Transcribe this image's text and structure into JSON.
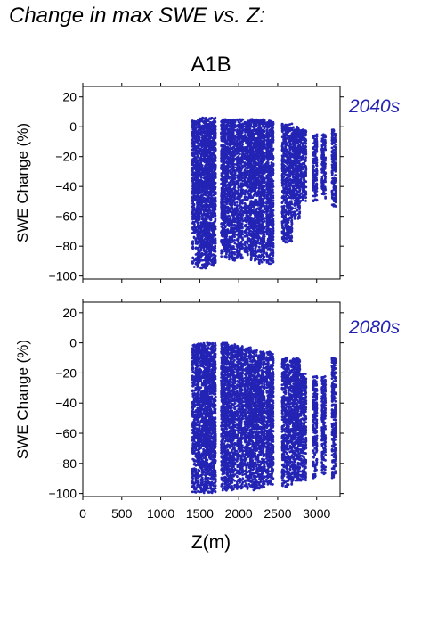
{
  "title": "Change in max SWE vs. Z:",
  "colors": {
    "points": "#2323b4",
    "period_label": "#2323b4",
    "axes": "#000000"
  },
  "chart_data": [
    {
      "type": "scatter",
      "scenario": "A1B",
      "period": "2040s",
      "ylabel": "SWE Change (%)",
      "xlabel": "",
      "xlim": [
        0,
        3300
      ],
      "ylim": [
        -102,
        27
      ],
      "yticks": [
        20,
        0,
        -20,
        -40,
        -60,
        -80,
        -100
      ],
      "xticks": [
        0,
        500,
        1000,
        1500,
        2000,
        2500,
        3000
      ],
      "show_x_tick_labels": false,
      "grid": false,
      "x_range_of_points": [
        1410,
        3240
      ],
      "y_range_of_points": [
        -96,
        6
      ],
      "elevation_bands": [
        {
          "x": [
            1410,
            1470
          ],
          "ymin": -94,
          "ymax": 4
        },
        {
          "x": [
            1480,
            1570
          ],
          "ymin": -96,
          "ymax": 6
        },
        {
          "x": [
            1580,
            1700
          ],
          "ymin": -93,
          "ymax": 6
        },
        {
          "x": [
            1780,
            1860
          ],
          "ymin": -88,
          "ymax": 5
        },
        {
          "x": [
            1880,
            1950
          ],
          "ymin": -90,
          "ymax": 5
        },
        {
          "x": [
            1980,
            2050
          ],
          "ymin": -89,
          "ymax": 5
        },
        {
          "x": [
            2080,
            2150
          ],
          "ymin": -86,
          "ymax": 4
        },
        {
          "x": [
            2160,
            2230
          ],
          "ymin": -90,
          "ymax": 5
        },
        {
          "x": [
            2250,
            2330
          ],
          "ymin": -92,
          "ymax": 5
        },
        {
          "x": [
            2360,
            2440
          ],
          "ymin": -92,
          "ymax": 4
        },
        {
          "x": [
            2560,
            2620
          ],
          "ymin": -78,
          "ymax": 2
        },
        {
          "x": [
            2640,
            2680
          ],
          "ymin": -77,
          "ymax": 2
        },
        {
          "x": [
            2700,
            2780
          ],
          "ymin": -62,
          "ymax": 0
        },
        {
          "x": [
            2800,
            2860
          ],
          "ymin": -50,
          "ymax": -2
        },
        {
          "x": [
            2960,
            3000
          ],
          "ymin": -50,
          "ymax": -5
        },
        {
          "x": [
            3070,
            3110
          ],
          "ymin": -48,
          "ymax": -4
        },
        {
          "x": [
            3200,
            3240
          ],
          "ymin": -55,
          "ymax": -2
        }
      ]
    },
    {
      "type": "scatter",
      "scenario": "A1B",
      "period": "2080s",
      "ylabel": "SWE Change (%)",
      "xlabel": "Z(m)",
      "xlim": [
        0,
        3300
      ],
      "ylim": [
        -102,
        27
      ],
      "yticks": [
        20,
        0,
        -20,
        -40,
        -60,
        -80,
        -100
      ],
      "xticks": [
        0,
        500,
        1000,
        1500,
        2000,
        2500,
        3000
      ],
      "show_x_tick_labels": true,
      "grid": false,
      "x_range_of_points": [
        1410,
        3240
      ],
      "y_range_of_points": [
        -100,
        0
      ],
      "elevation_bands": [
        {
          "x": [
            1410,
            1470
          ],
          "ymin": -100,
          "ymax": -1
        },
        {
          "x": [
            1480,
            1570
          ],
          "ymin": -100,
          "ymax": 0
        },
        {
          "x": [
            1580,
            1700
          ],
          "ymin": -100,
          "ymax": 0
        },
        {
          "x": [
            1780,
            1860
          ],
          "ymin": -98,
          "ymax": 0
        },
        {
          "x": [
            1880,
            1950
          ],
          "ymin": -98,
          "ymax": -1
        },
        {
          "x": [
            1980,
            2050
          ],
          "ymin": -97,
          "ymax": -2
        },
        {
          "x": [
            2080,
            2150
          ],
          "ymin": -97,
          "ymax": -3
        },
        {
          "x": [
            2160,
            2230
          ],
          "ymin": -98,
          "ymax": -5
        },
        {
          "x": [
            2250,
            2330
          ],
          "ymin": -97,
          "ymax": -6
        },
        {
          "x": [
            2360,
            2440
          ],
          "ymin": -94,
          "ymax": -6
        },
        {
          "x": [
            2560,
            2620
          ],
          "ymin": -96,
          "ymax": -10
        },
        {
          "x": [
            2640,
            2680
          ],
          "ymin": -95,
          "ymax": -12
        },
        {
          "x": [
            2700,
            2780
          ],
          "ymin": -92,
          "ymax": -10
        },
        {
          "x": [
            2800,
            2860
          ],
          "ymin": -92,
          "ymax": -20
        },
        {
          "x": [
            2960,
            3000
          ],
          "ymin": -90,
          "ymax": -22
        },
        {
          "x": [
            3070,
            3110
          ],
          "ymin": -88,
          "ymax": -22
        },
        {
          "x": [
            3200,
            3240
          ],
          "ymin": -90,
          "ymax": -10
        }
      ]
    }
  ]
}
